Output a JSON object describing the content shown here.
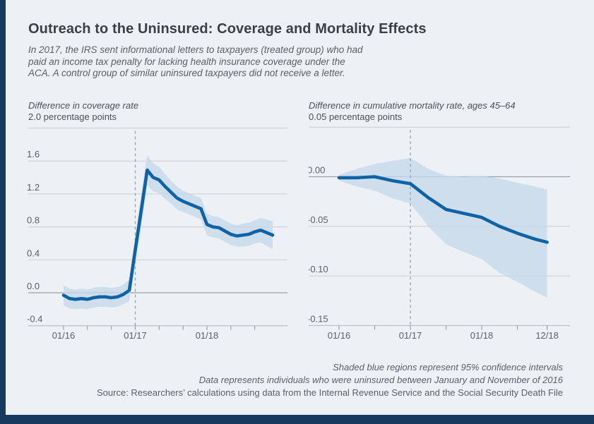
{
  "header": {
    "title": "Outreach to the Uninsured: Coverage and Mortality Effects",
    "subtitle_lines": [
      "In 2017, the IRS sent informational letters to taxpayers (treated group) who had",
      "paid an income tax penalty for lacking health insurance coverage under the",
      "ACA. A control group of similar uninsured taxpayers did not receive a letter."
    ]
  },
  "colors": {
    "accent_bar": "#18395e",
    "line": "#0d63a6",
    "ci_band": "#c7d9ea",
    "background": "#edf1f6"
  },
  "footer": {
    "lines": [
      "Shaded blue regions represent 95% confidence intervals",
      "Data represents individuals who were uninsured between January and November of 2016",
      "Source: Researchers’ calculations using data from the Internal Revenue Service and the Social Security Death File"
    ]
  },
  "chart_data": [
    {
      "type": "line",
      "title": "Difference in coverage rate",
      "units_label": "2.0 percentage points",
      "ylabel": "percentage points",
      "ylim": [
        -0.4,
        2.0
      ],
      "event_month": "01/17",
      "x": [
        "01/16",
        "02/16",
        "03/16",
        "04/16",
        "05/16",
        "06/16",
        "07/16",
        "08/16",
        "09/16",
        "10/16",
        "11/16",
        "12/16",
        "01/17",
        "02/17",
        "03/17",
        "04/17",
        "05/17",
        "06/17",
        "07/17",
        "08/17",
        "09/17",
        "10/17",
        "11/17",
        "12/17",
        "01/18",
        "02/18",
        "03/18",
        "04/18",
        "05/18",
        "06/18",
        "07/18",
        "08/18",
        "09/18",
        "10/18",
        "11/18",
        "12/18"
      ],
      "values": [
        -0.03,
        -0.07,
        -0.08,
        -0.07,
        -0.08,
        -0.06,
        -0.05,
        -0.05,
        -0.06,
        -0.05,
        -0.02,
        0.03,
        0.52,
        1.0,
        1.49,
        1.4,
        1.37,
        1.29,
        1.22,
        1.15,
        1.11,
        1.08,
        1.05,
        1.02,
        0.83,
        0.8,
        0.79,
        0.75,
        0.71,
        0.69,
        0.7,
        0.71,
        0.74,
        0.76,
        0.73,
        0.7
      ],
      "ci_halfwidth": [
        0.12,
        0.12,
        0.12,
        0.12,
        0.12,
        0.12,
        0.12,
        0.12,
        0.12,
        0.12,
        0.12,
        0.13,
        0.18,
        0.2,
        0.18,
        0.17,
        0.16,
        0.15,
        0.14,
        0.14,
        0.13,
        0.13,
        0.13,
        0.13,
        0.13,
        0.13,
        0.13,
        0.13,
        0.13,
        0.13,
        0.14,
        0.14,
        0.14,
        0.15,
        0.16,
        0.17
      ],
      "y_ticks": [
        {
          "v": 2.0,
          "label": ""
        },
        {
          "v": 1.6,
          "label": "1.6"
        },
        {
          "v": 1.2,
          "label": "1.2"
        },
        {
          "v": 0.8,
          "label": "0.8"
        },
        {
          "v": 0.4,
          "label": "0.4"
        },
        {
          "v": 0.0,
          "label": "0.0"
        },
        {
          "v": -0.4,
          "label": "-0.4"
        }
      ],
      "x_tick_months": [
        "01/16",
        "05/16",
        "09/16",
        "01/17",
        "05/17",
        "09/17",
        "01/18",
        "05/18",
        "09/18"
      ],
      "x_label_months": [
        "01/16",
        "01/17",
        "01/18"
      ]
    },
    {
      "type": "line",
      "title": "Difference in cumulative mortality rate, ages 45–64",
      "units_label": "0.05 percentage points",
      "ylabel": "percentage points",
      "ylim": [
        -0.15,
        0.05
      ],
      "event_month": "01/17",
      "x": [
        "01/16",
        "04/16",
        "07/16",
        "10/16",
        "01/17",
        "04/17",
        "07/17",
        "10/17",
        "01/18",
        "04/18",
        "07/18",
        "10/18",
        "12/18"
      ],
      "values": [
        -0.001,
        -0.001,
        0.0,
        -0.004,
        -0.007,
        -0.021,
        -0.033,
        -0.037,
        -0.041,
        -0.05,
        -0.057,
        -0.063,
        -0.066
      ],
      "ci_upper": [
        0.002,
        0.008,
        0.013,
        0.016,
        0.019,
        0.008,
        0.001,
        0.0,
        0.001,
        -0.002,
        -0.006,
        -0.01,
        -0.013
      ],
      "ci_lower": [
        -0.004,
        -0.01,
        -0.014,
        -0.022,
        -0.027,
        -0.05,
        -0.068,
        -0.076,
        -0.083,
        -0.097,
        -0.106,
        -0.116,
        -0.122
      ],
      "y_ticks": [
        {
          "v": 0.05,
          "label": ""
        },
        {
          "v": 0.0,
          "label": "0.00"
        },
        {
          "v": -0.05,
          "label": "-0.05"
        },
        {
          "v": -0.1,
          "label": "-0.10"
        },
        {
          "v": -0.15,
          "label": "-0.15"
        }
      ],
      "x_tick_months": [
        "01/16",
        "07/16",
        "01/17",
        "07/17",
        "01/18",
        "07/18",
        "12/18"
      ],
      "x_label_months": [
        "01/16",
        "01/17",
        "01/18",
        "12/18"
      ]
    }
  ]
}
